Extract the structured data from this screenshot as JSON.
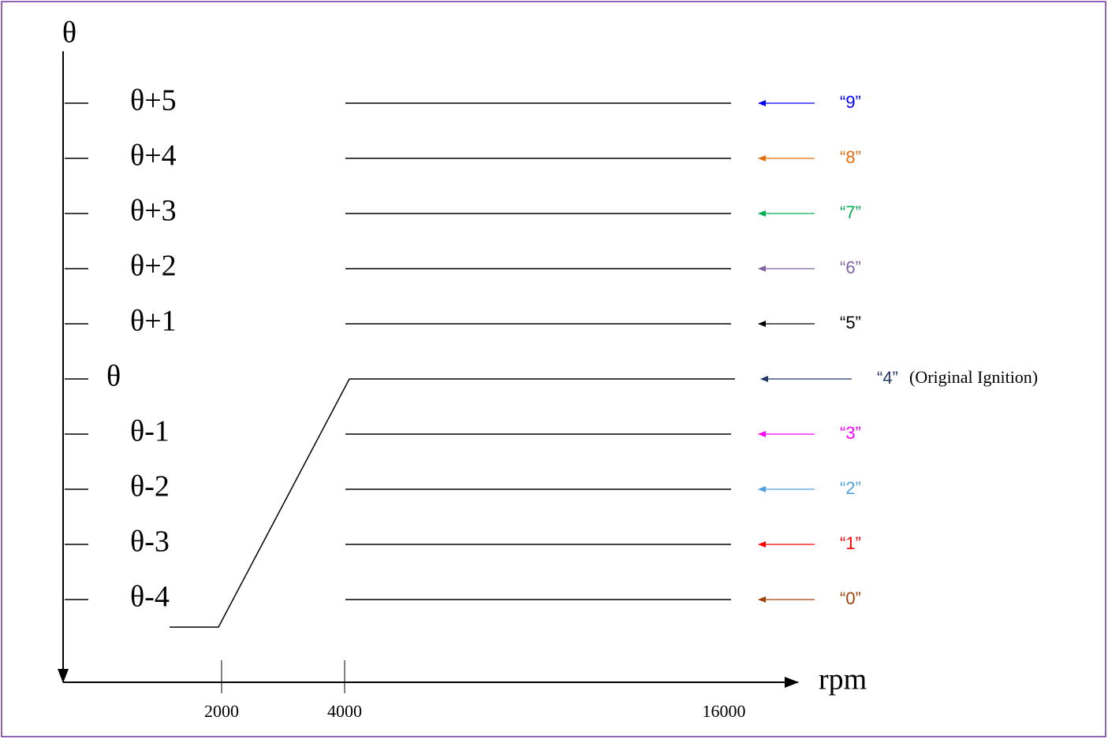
{
  "y_axis": {
    "label": "θ"
  },
  "x_axis": {
    "label": "rpm",
    "ticks": [
      "2000",
      "4000",
      "16000"
    ]
  },
  "levels": [
    {
      "label": "θ+5",
      "tag": "“9”",
      "color": "#0000ff"
    },
    {
      "label": "θ+4",
      "tag": "“8”",
      "color": "#e36c0a"
    },
    {
      "label": "θ+3",
      "tag": "“7”",
      "color": "#00b050"
    },
    {
      "label": "θ+2",
      "tag": "“6”",
      "color": "#8064a2"
    },
    {
      "label": "θ+1",
      "tag": "“5”",
      "color": "#000000"
    },
    {
      "label": "θ",
      "tag": "“4”",
      "color": "#1f3864",
      "note": "(Original Ignition)"
    },
    {
      "label": "θ-1",
      "tag": "“3”",
      "color": "#ff00ff"
    },
    {
      "label": "θ-2",
      "tag": "“2”",
      "color": "#4f9fe0"
    },
    {
      "label": "θ-3",
      "tag": "“1”",
      "color": "#ff0000"
    },
    {
      "label": "θ-4",
      "tag": "“0”",
      "color": "#a0400a"
    }
  ]
}
